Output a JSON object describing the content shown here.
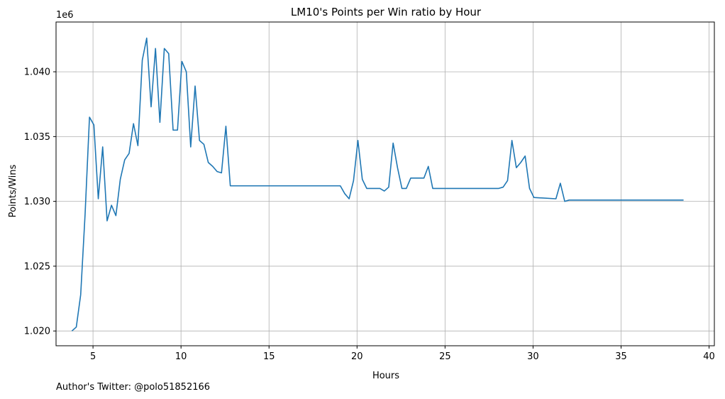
{
  "chart_data": {
    "type": "line",
    "title": "LM10's Points per Win ratio by Hour",
    "xlabel": "Hours",
    "ylabel": "Points/Wins",
    "y_offset_label": "1e6",
    "xlim": [
      2.9,
      40.3
    ],
    "ylim": [
      1.01886,
      1.04384
    ],
    "x_ticks": [
      5,
      10,
      15,
      20,
      25,
      30,
      35,
      40
    ],
    "x_tick_labels": [
      "5",
      "10",
      "15",
      "20",
      "25",
      "30",
      "35",
      "40"
    ],
    "y_ticks": [
      1.02,
      1.025,
      1.03,
      1.035,
      1.04
    ],
    "y_tick_labels": [
      "1.020",
      "1.025",
      "1.030",
      "1.035",
      "1.040"
    ],
    "grid": true,
    "line_color": "#1f77b4",
    "series": [
      {
        "x": [
          3.8,
          4.05,
          4.3,
          4.55,
          4.8,
          5.05,
          5.3,
          5.55,
          5.8,
          6.05,
          6.3,
          6.55,
          6.8,
          7.05,
          7.3,
          7.55,
          7.8,
          8.05,
          8.3,
          8.55,
          8.8,
          9.05,
          9.3,
          9.55,
          9.8,
          10.05,
          10.3,
          10.55,
          10.8,
          11.05,
          11.3,
          11.55,
          11.8,
          12.05,
          12.3,
          12.55,
          12.8,
          13.05,
          19.05,
          19.3,
          19.55,
          19.8,
          20.05,
          20.3,
          20.55,
          20.8,
          21.05,
          21.3,
          21.55,
          21.8,
          22.05,
          22.3,
          22.55,
          22.8,
          23.05,
          23.3,
          23.55,
          23.8,
          24.05,
          24.3,
          28.05,
          28.3,
          28.55,
          28.8,
          29.05,
          29.3,
          29.55,
          29.8,
          30.05,
          31.3,
          31.55,
          31.8,
          32.05,
          32.8,
          38.55
        ],
        "y": [
          1.02,
          1.0203,
          1.0228,
          1.029,
          1.0365,
          1.0359,
          1.0302,
          1.0342,
          1.0285,
          1.0297,
          1.0289,
          1.0317,
          1.0332,
          1.0337,
          1.036,
          1.0343,
          1.0409,
          1.0426,
          1.0373,
          1.0418,
          1.0361,
          1.0418,
          1.0414,
          1.0355,
          1.0355,
          1.0408,
          1.04,
          1.0342,
          1.0389,
          1.0347,
          1.0344,
          1.033,
          1.0327,
          1.0323,
          1.0322,
          1.0358,
          1.0312,
          1.0312,
          1.0312,
          1.0306,
          1.0302,
          1.0316,
          1.0347,
          1.0317,
          1.031,
          1.031,
          1.031,
          1.031,
          1.0308,
          1.0311,
          1.0345,
          1.0326,
          1.031,
          1.031,
          1.0318,
          1.0318,
          1.0318,
          1.0318,
          1.0327,
          1.031,
          1.031,
          1.0311,
          1.0316,
          1.0347,
          1.0326,
          1.033,
          1.0335,
          1.031,
          1.0303,
          1.0302,
          1.0314,
          1.03,
          1.0301,
          1.0301,
          1.0301
        ]
      }
    ]
  },
  "footer": {
    "author_text": "Author's Twitter: @polo51852166"
  }
}
